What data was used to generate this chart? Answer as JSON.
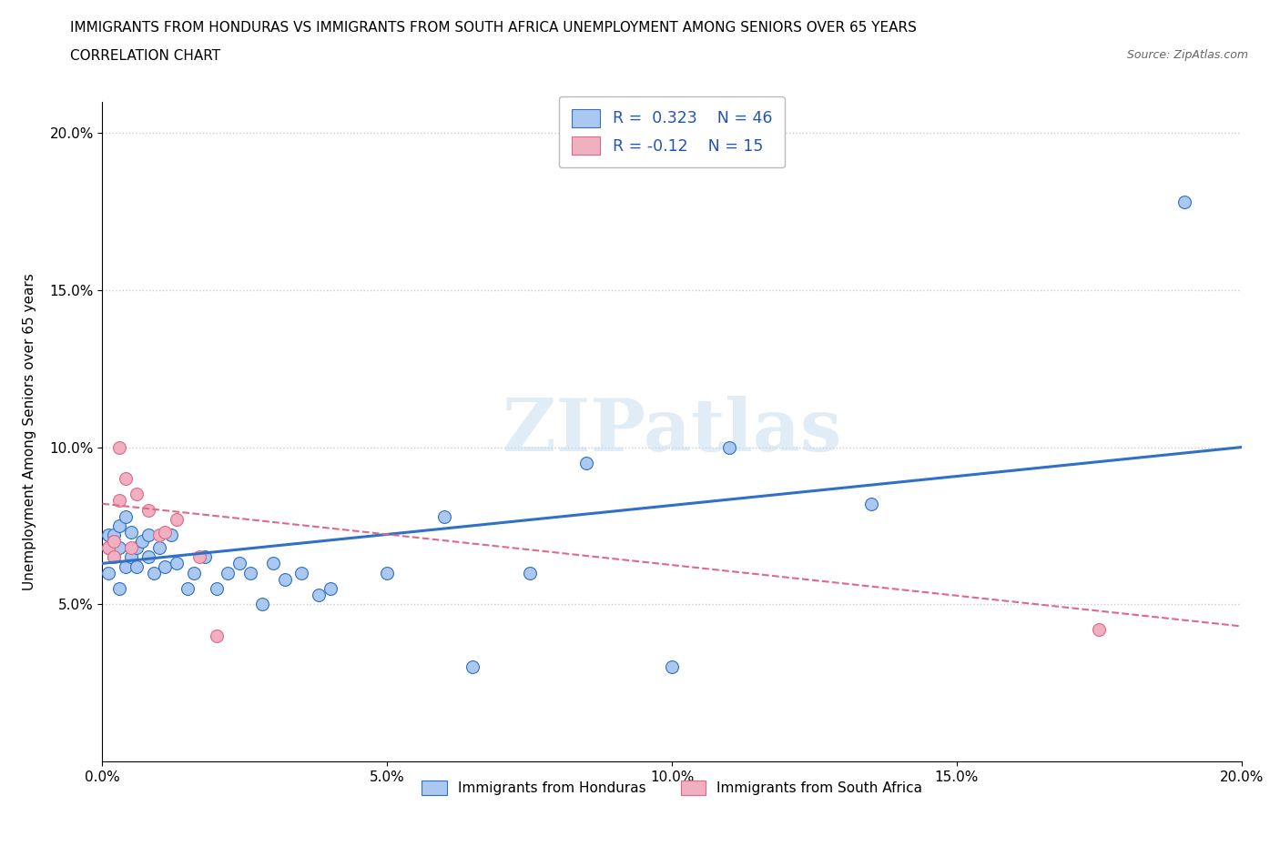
{
  "title_line1": "IMMIGRANTS FROM HONDURAS VS IMMIGRANTS FROM SOUTH AFRICA UNEMPLOYMENT AMONG SENIORS OVER 65 YEARS",
  "title_line2": "CORRELATION CHART",
  "source_text": "Source: ZipAtlas.com",
  "ylabel": "Unemployment Among Seniors over 65 years",
  "xlim": [
    0.0,
    0.2
  ],
  "ylim": [
    0.0,
    0.21
  ],
  "yticks": [
    0.05,
    0.1,
    0.15,
    0.2
  ],
  "xticks": [
    0.0,
    0.05,
    0.1,
    0.15,
    0.2
  ],
  "xtick_labels": [
    "0.0%",
    "5.0%",
    "10.0%",
    "15.0%",
    "20.0%"
  ],
  "ytick_labels": [
    "5.0%",
    "10.0%",
    "15.0%",
    "20.0%"
  ],
  "R_honduras": 0.323,
  "N_honduras": 46,
  "R_south_africa": -0.12,
  "N_south_africa": 15,
  "color_honduras": "#aac8f0",
  "color_south_africa": "#f0b0c0",
  "line_color_honduras": "#3070c8",
  "line_color_south_africa": "#e06888",
  "watermark_zip": "ZIP",
  "watermark_atlas": "atlas",
  "legend_label_honduras": "Immigrants from Honduras",
  "legend_label_south_africa": "Immigrants from South Africa",
  "honduras_x": [
    0.001,
    0.001,
    0.001,
    0.002,
    0.002,
    0.002,
    0.002,
    0.003,
    0.003,
    0.003,
    0.004,
    0.004,
    0.005,
    0.005,
    0.006,
    0.006,
    0.007,
    0.008,
    0.008,
    0.009,
    0.01,
    0.011,
    0.012,
    0.013,
    0.015,
    0.016,
    0.018,
    0.02,
    0.022,
    0.024,
    0.026,
    0.028,
    0.03,
    0.032,
    0.035,
    0.038,
    0.04,
    0.05,
    0.06,
    0.065,
    0.075,
    0.085,
    0.1,
    0.11,
    0.135,
    0.19
  ],
  "honduras_y": [
    0.068,
    0.072,
    0.06,
    0.072,
    0.065,
    0.07,
    0.067,
    0.068,
    0.055,
    0.075,
    0.062,
    0.078,
    0.065,
    0.073,
    0.062,
    0.068,
    0.07,
    0.072,
    0.065,
    0.06,
    0.068,
    0.062,
    0.072,
    0.063,
    0.055,
    0.06,
    0.065,
    0.055,
    0.06,
    0.063,
    0.06,
    0.05,
    0.063,
    0.058,
    0.06,
    0.053,
    0.055,
    0.06,
    0.078,
    0.03,
    0.06,
    0.095,
    0.03,
    0.1,
    0.082,
    0.178
  ],
  "south_africa_x": [
    0.001,
    0.002,
    0.002,
    0.003,
    0.003,
    0.004,
    0.005,
    0.006,
    0.008,
    0.01,
    0.011,
    0.013,
    0.017,
    0.02,
    0.175
  ],
  "south_africa_y": [
    0.068,
    0.065,
    0.07,
    0.1,
    0.083,
    0.09,
    0.068,
    0.085,
    0.08,
    0.072,
    0.073,
    0.077,
    0.065,
    0.04,
    0.042
  ],
  "line_h_x0": 0.0,
  "line_h_x1": 0.2,
  "line_h_y0": 0.063,
  "line_h_y1": 0.1,
  "line_s_x0": 0.0,
  "line_s_x1": 0.2,
  "line_s_y0": 0.082,
  "line_s_y1": 0.043
}
